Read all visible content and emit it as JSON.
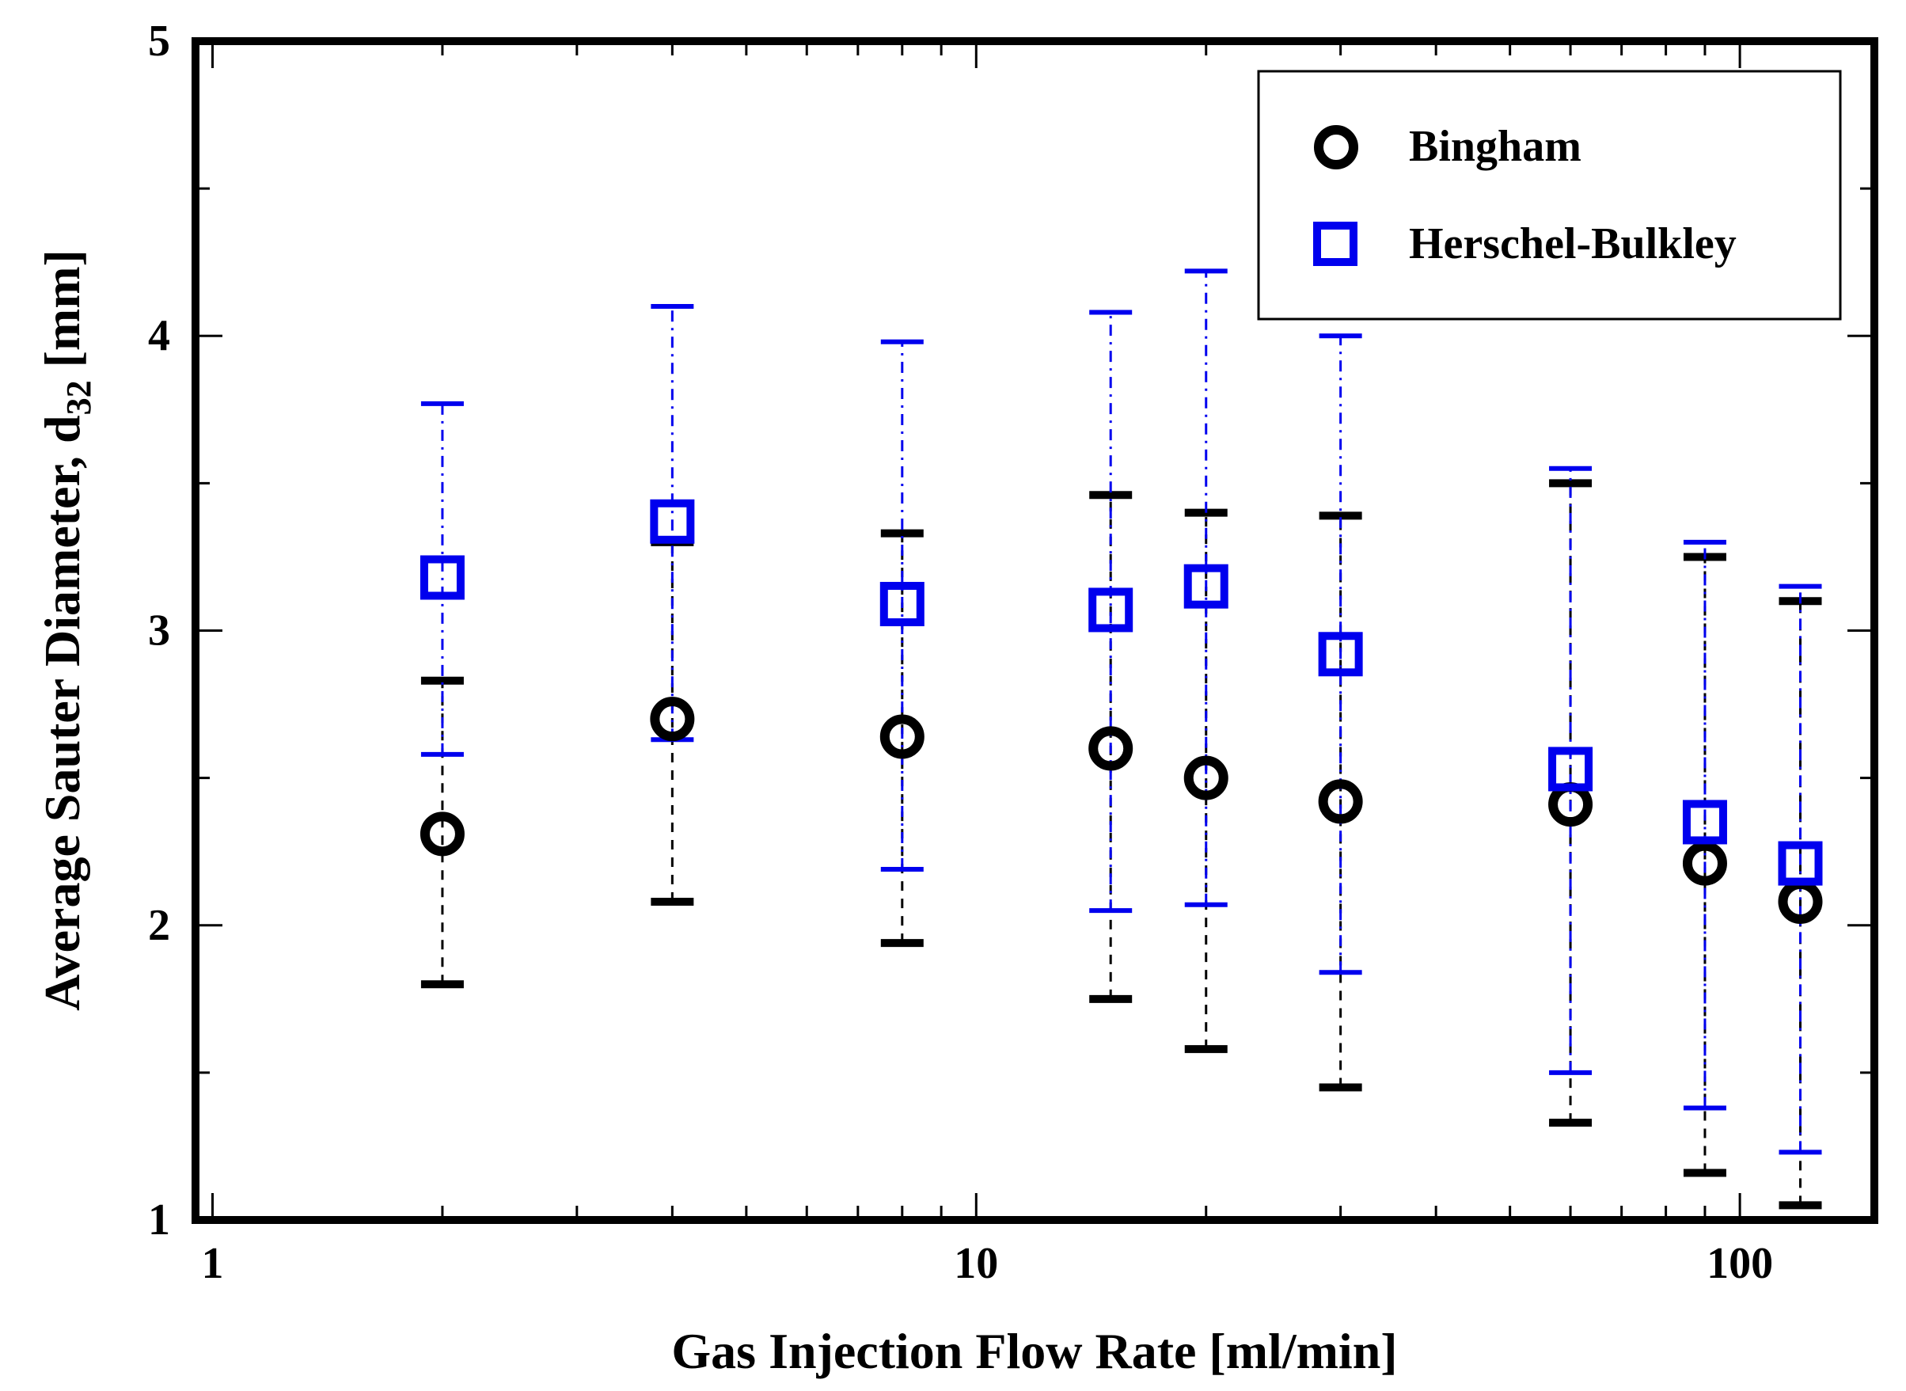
{
  "chart_data": {
    "type": "scatter",
    "x_scale": "log",
    "xlim": [
      0.95,
      150
    ],
    "ylim": [
      1,
      5
    ],
    "xlabel": "Gas Injection Flow Rate [ml/min]",
    "ylabel_main": "Average Sauter Diameter, d",
    "ylabel_sub": "32",
    "ylabel_tail": " [mm]",
    "x_ticks": [
      {
        "value": 1,
        "label": "1"
      },
      {
        "value": 10,
        "label": "10"
      },
      {
        "value": 100,
        "label": "100"
      }
    ],
    "y_ticks": [
      {
        "value": 1,
        "label": "1"
      },
      {
        "value": 2,
        "label": "2"
      },
      {
        "value": 3,
        "label": "3"
      },
      {
        "value": 4,
        "label": "4"
      },
      {
        "value": 5,
        "label": "5"
      }
    ],
    "legend_position": "top-right",
    "series": [
      {
        "name": "Bingham",
        "marker": "circle",
        "color": "#000000",
        "points": [
          {
            "x": 2,
            "y": 2.31,
            "lo": 1.8,
            "hi": 2.83
          },
          {
            "x": 4,
            "y": 2.7,
            "lo": 2.08,
            "hi": 3.3
          },
          {
            "x": 8,
            "y": 2.64,
            "lo": 1.94,
            "hi": 3.33
          },
          {
            "x": 15,
            "y": 2.6,
            "lo": 1.75,
            "hi": 3.46
          },
          {
            "x": 20,
            "y": 2.5,
            "lo": 1.58,
            "hi": 3.4
          },
          {
            "x": 30,
            "y": 2.42,
            "lo": 1.45,
            "hi": 3.39
          },
          {
            "x": 60,
            "y": 2.41,
            "lo": 1.33,
            "hi": 3.5
          },
          {
            "x": 90,
            "y": 2.21,
            "lo": 1.16,
            "hi": 3.25
          },
          {
            "x": 120,
            "y": 2.08,
            "lo": 1.05,
            "hi": 3.1
          }
        ]
      },
      {
        "name": "Herschel-Bulkley",
        "marker": "square",
        "color": "#0000ee",
        "points": [
          {
            "x": 2,
            "y": 3.18,
            "lo": 2.58,
            "hi": 3.77
          },
          {
            "x": 4,
            "y": 3.37,
            "lo": 2.63,
            "hi": 4.1
          },
          {
            "x": 8,
            "y": 3.09,
            "lo": 2.19,
            "hi": 3.98
          },
          {
            "x": 15,
            "y": 3.07,
            "lo": 2.05,
            "hi": 4.08
          },
          {
            "x": 20,
            "y": 3.15,
            "lo": 2.07,
            "hi": 4.22
          },
          {
            "x": 30,
            "y": 2.92,
            "lo": 1.84,
            "hi": 4.0
          },
          {
            "x": 60,
            "y": 2.53,
            "lo": 1.5,
            "hi": 3.55
          },
          {
            "x": 90,
            "y": 2.35,
            "lo": 1.38,
            "hi": 3.3
          },
          {
            "x": 120,
            "y": 2.21,
            "lo": 1.23,
            "hi": 3.15
          }
        ]
      }
    ]
  }
}
